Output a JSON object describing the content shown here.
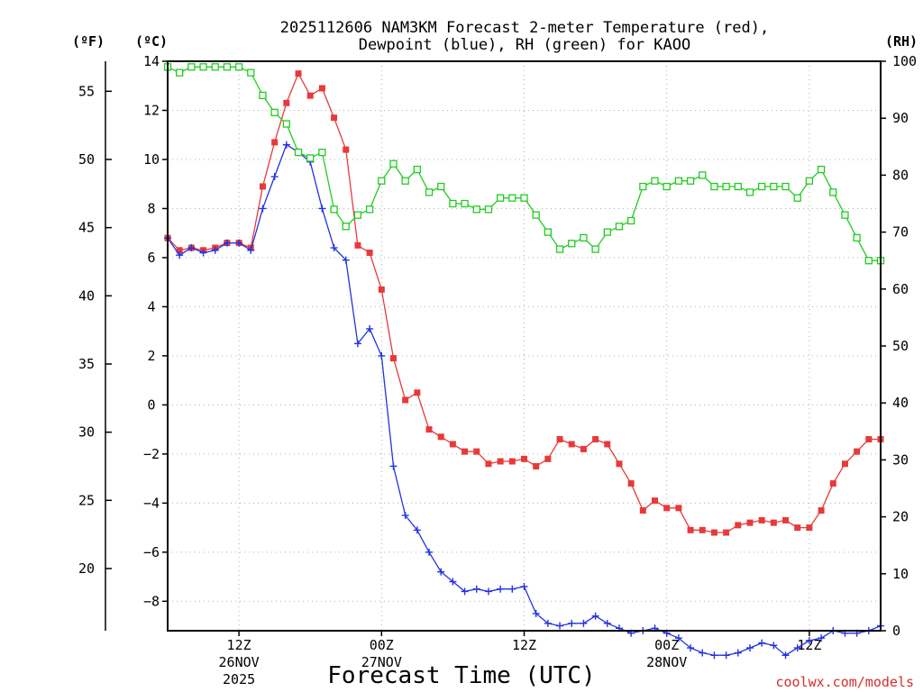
{
  "chart_data": {
    "type": "line",
    "title": [
      "2025112606 NAM3KM Forecast 2-meter Temperature (red),",
      "Dewpoint (blue), RH (green) for KAOO"
    ],
    "xlabel": "Forecast Time (UTC)",
    "credit": "coolwx.com/models",
    "units": {
      "fahrenheit": "(ºF)",
      "celsius": "(ºC)",
      "rh": "(RH)"
    },
    "x_unit": "hour",
    "xlim": [
      0,
      60
    ],
    "ylim_c": [
      -9.2,
      14
    ],
    "ylim_rh": [
      0,
      100
    ],
    "yticks_c": [
      "14",
      "12",
      "10",
      "8",
      "6",
      "4",
      "2",
      "0",
      "−2",
      "−4",
      "−6",
      "−8"
    ],
    "yticks_c_values": [
      14,
      12,
      10,
      8,
      6,
      4,
      2,
      0,
      -2,
      -4,
      -6,
      -8
    ],
    "yticks_f": [
      "55",
      "50",
      "45",
      "40",
      "35",
      "30",
      "25",
      "20"
    ],
    "yticks_f_values": [
      55,
      50,
      45,
      40,
      35,
      30,
      25,
      20
    ],
    "yticks_rh": [
      "100",
      "90",
      "80",
      "70",
      "60",
      "50",
      "40",
      "30",
      "20",
      "10",
      "0"
    ],
    "yticks_rh_values": [
      100,
      90,
      80,
      70,
      60,
      50,
      40,
      30,
      20,
      10,
      0
    ],
    "xticks": [
      {
        "hour": 6,
        "lines": [
          "12Z",
          "26NOV",
          "2025"
        ]
      },
      {
        "hour": 18,
        "lines": [
          "00Z",
          "27NOV"
        ]
      },
      {
        "hour": 30,
        "lines": [
          "12Z",
          ""
        ]
      },
      {
        "hour": 42,
        "lines": [
          "00Z",
          "28NOV"
        ]
      },
      {
        "hour": 54,
        "lines": [
          "12Z",
          ""
        ]
      }
    ],
    "series": [
      {
        "name": "Temperature",
        "color": "#e8393a",
        "marker": "filled-square",
        "axis": "celsius",
        "x": [
          0,
          1,
          2,
          3,
          4,
          5,
          6,
          7,
          8,
          9,
          10,
          11,
          12,
          13,
          14,
          15,
          16,
          17,
          18,
          19,
          20,
          21,
          22,
          23,
          24,
          25,
          26,
          27,
          28,
          29,
          30,
          31,
          32,
          33,
          34,
          35,
          36,
          37,
          38,
          39,
          40,
          41,
          42,
          43,
          44,
          45,
          46,
          47,
          48,
          49,
          50,
          51,
          52,
          53,
          54,
          55,
          56,
          57,
          58,
          59,
          60
        ],
        "y": [
          6.8,
          6.3,
          6.4,
          6.3,
          6.4,
          6.6,
          6.6,
          6.4,
          8.9,
          10.7,
          12.3,
          13.5,
          12.6,
          12.9,
          11.7,
          10.4,
          6.5,
          6.2,
          4.7,
          1.9,
          0.2,
          0.5,
          -1.0,
          -1.3,
          -1.6,
          -1.9,
          -1.9,
          -2.4,
          -2.3,
          -2.3,
          -2.2,
          -2.5,
          -2.2,
          -1.4,
          -1.6,
          -1.8,
          -1.4,
          -1.6,
          -2.4,
          -3.2,
          -4.3,
          -3.9,
          -4.2,
          -4.2,
          -5.1,
          -5.1,
          -5.2,
          -5.2,
          -4.9,
          -4.8,
          -4.7,
          -4.8,
          -4.7,
          -5.0,
          -5.0,
          -4.3,
          -3.2,
          -2.4,
          -1.9,
          -1.4,
          -1.4
        ]
      },
      {
        "name": "Dewpoint",
        "color": "#2233e0",
        "marker": "plus",
        "axis": "celsius",
        "x": [
          0,
          1,
          2,
          3,
          4,
          5,
          6,
          7,
          8,
          9,
          10,
          11,
          12,
          13,
          14,
          15,
          16,
          17,
          18,
          19,
          20,
          21,
          22,
          23,
          24,
          25,
          26,
          27,
          28,
          29,
          30,
          31,
          32,
          33,
          34,
          35,
          36,
          37,
          38,
          39,
          40,
          41,
          42,
          43,
          44,
          45,
          46,
          47,
          48,
          49,
          50,
          51,
          52,
          53,
          54,
          55,
          56,
          57,
          58,
          59,
          60
        ],
        "y": [
          6.8,
          6.1,
          6.4,
          6.2,
          6.3,
          6.6,
          6.6,
          6.3,
          8.0,
          9.3,
          10.6,
          10.3,
          9.9,
          8.0,
          6.4,
          5.9,
          2.5,
          3.1,
          2.0,
          -2.5,
          -4.5,
          -5.1,
          -6.0,
          -6.8,
          -7.2,
          -7.6,
          -7.5,
          -7.6,
          -7.5,
          -7.5,
          -7.4,
          -8.5,
          -8.9,
          -9.0,
          -8.9,
          -8.9,
          -8.6,
          -8.9,
          -9.1,
          -9.3,
          -9.2,
          -9.1,
          -9.3,
          -9.5,
          -9.9,
          -10.1,
          -10.2,
          -10.2,
          -10.1,
          -9.9,
          -9.7,
          -9.8,
          -10.2,
          -9.9,
          -9.6,
          -9.5,
          -9.2,
          -9.3,
          -9.3,
          -9.2,
          -9.0
        ]
      },
      {
        "name": "RH",
        "color": "#22cc22",
        "marker": "open-square",
        "axis": "rh",
        "x": [
          0,
          1,
          2,
          3,
          4,
          5,
          6,
          7,
          8,
          9,
          10,
          11,
          12,
          13,
          14,
          15,
          16,
          17,
          18,
          19,
          20,
          21,
          22,
          23,
          24,
          25,
          26,
          27,
          28,
          29,
          30,
          31,
          32,
          33,
          34,
          35,
          36,
          37,
          38,
          39,
          40,
          41,
          42,
          43,
          44,
          45,
          46,
          47,
          48,
          49,
          50,
          51,
          52,
          53,
          54,
          55,
          56,
          57,
          58,
          59,
          60
        ],
        "y": [
          99,
          98,
          99,
          99,
          99,
          99,
          99,
          98,
          94,
          91,
          89,
          84,
          83,
          84,
          74,
          71,
          73,
          74,
          79,
          82,
          79,
          81,
          77,
          78,
          75,
          75,
          74,
          74,
          76,
          76,
          76,
          73,
          70,
          67,
          68,
          69,
          67,
          70,
          71,
          72,
          78,
          79,
          78,
          79,
          79,
          80,
          78,
          78,
          78,
          77,
          78,
          78,
          78,
          76,
          79,
          81,
          77,
          73,
          69,
          65,
          65
        ]
      }
    ]
  }
}
